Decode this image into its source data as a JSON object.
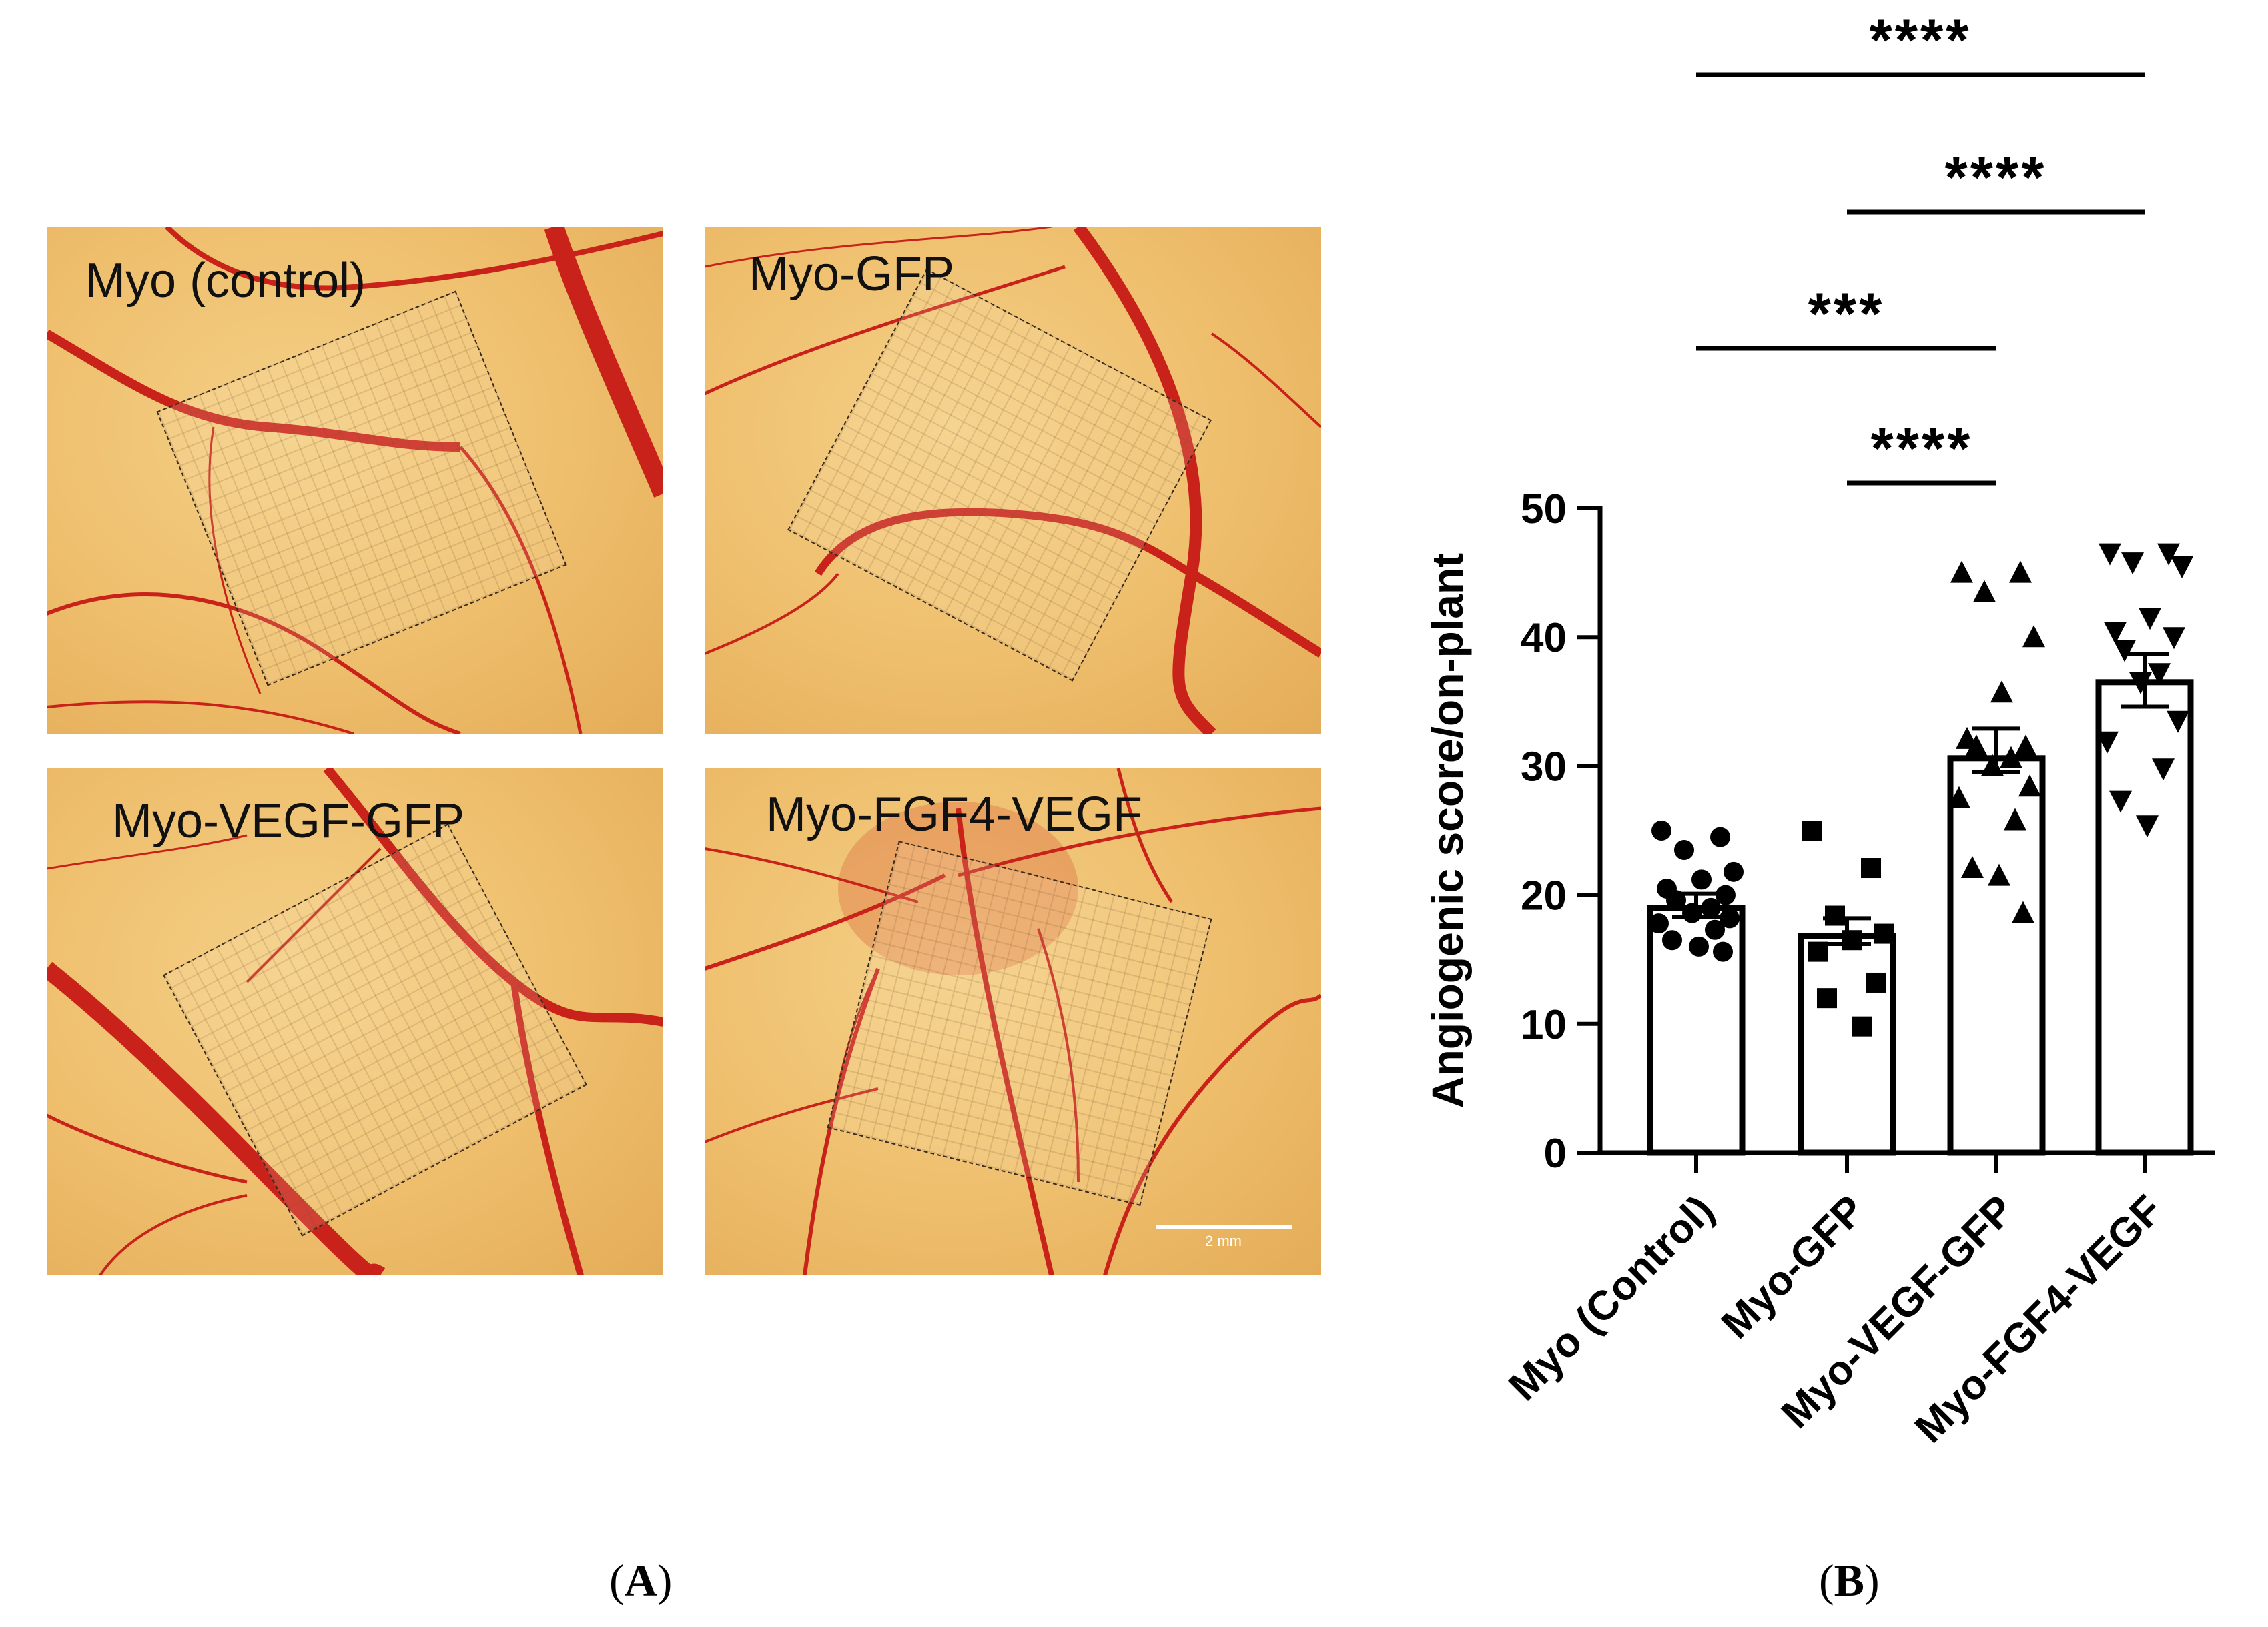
{
  "panel_a": {
    "photos": [
      {
        "label": "Myo (control)"
      },
      {
        "label": "Myo-GFP"
      },
      {
        "label": "Myo-VEGF-GFP"
      },
      {
        "label": "Myo-FGF4-VEGF"
      }
    ],
    "scale_bar_label": "2 mm",
    "caption": {
      "open": "(",
      "letter": "A",
      "close": ")"
    }
  },
  "panel_b": {
    "caption": {
      "open": "(",
      "letter": "B",
      "close": ")"
    }
  },
  "chart_data": {
    "type": "bar",
    "categories": [
      "Myo (Control)",
      "Myo-GFP",
      "Myo-VEGF-GFP",
      "Myo-FGF4-VEGF"
    ],
    "values": [
      19,
      16.8,
      30.6,
      36.5
    ],
    "error_upper": [
      20.1,
      18.2,
      32.9,
      38.7
    ],
    "error_lower": [
      18.3,
      16.2,
      29.5,
      34.6
    ],
    "ylabel": "Angiogenic score/on-plant",
    "xlabel": "",
    "ylim": [
      0,
      50
    ],
    "yticks": [
      0,
      10,
      20,
      30,
      40,
      50
    ],
    "markers": [
      "circle",
      "square",
      "triangle-up",
      "triangle-down"
    ],
    "points": [
      [
        25,
        24.5,
        23.5,
        21.8,
        21.2,
        20.5,
        20,
        19.6,
        19,
        18.6,
        18.2,
        17.8,
        17.3,
        16.5,
        16,
        15.6
      ],
      [
        25,
        22.1,
        18.4,
        17,
        16.5,
        15.6,
        13.2,
        12,
        9.8
      ],
      [
        45,
        45,
        43.5,
        40,
        35.7,
        32.1,
        31.5,
        31.5,
        30.6,
        30,
        28.4,
        27.5,
        25.8,
        22.1,
        21.5,
        18.6
      ],
      [
        46.5,
        46.5,
        45.8,
        45.5,
        41.5,
        40.4,
        40,
        39,
        37.2,
        36.5,
        33.5,
        31.9,
        29.8,
        27.3,
        25.4
      ]
    ],
    "significance": [
      {
        "from": 0,
        "to": 3,
        "label": "****"
      },
      {
        "from": 1,
        "to": 3,
        "label": "****"
      },
      {
        "from": 0,
        "to": 2,
        "label": "***"
      },
      {
        "from": 1,
        "to": 2,
        "label": "****"
      }
    ]
  }
}
